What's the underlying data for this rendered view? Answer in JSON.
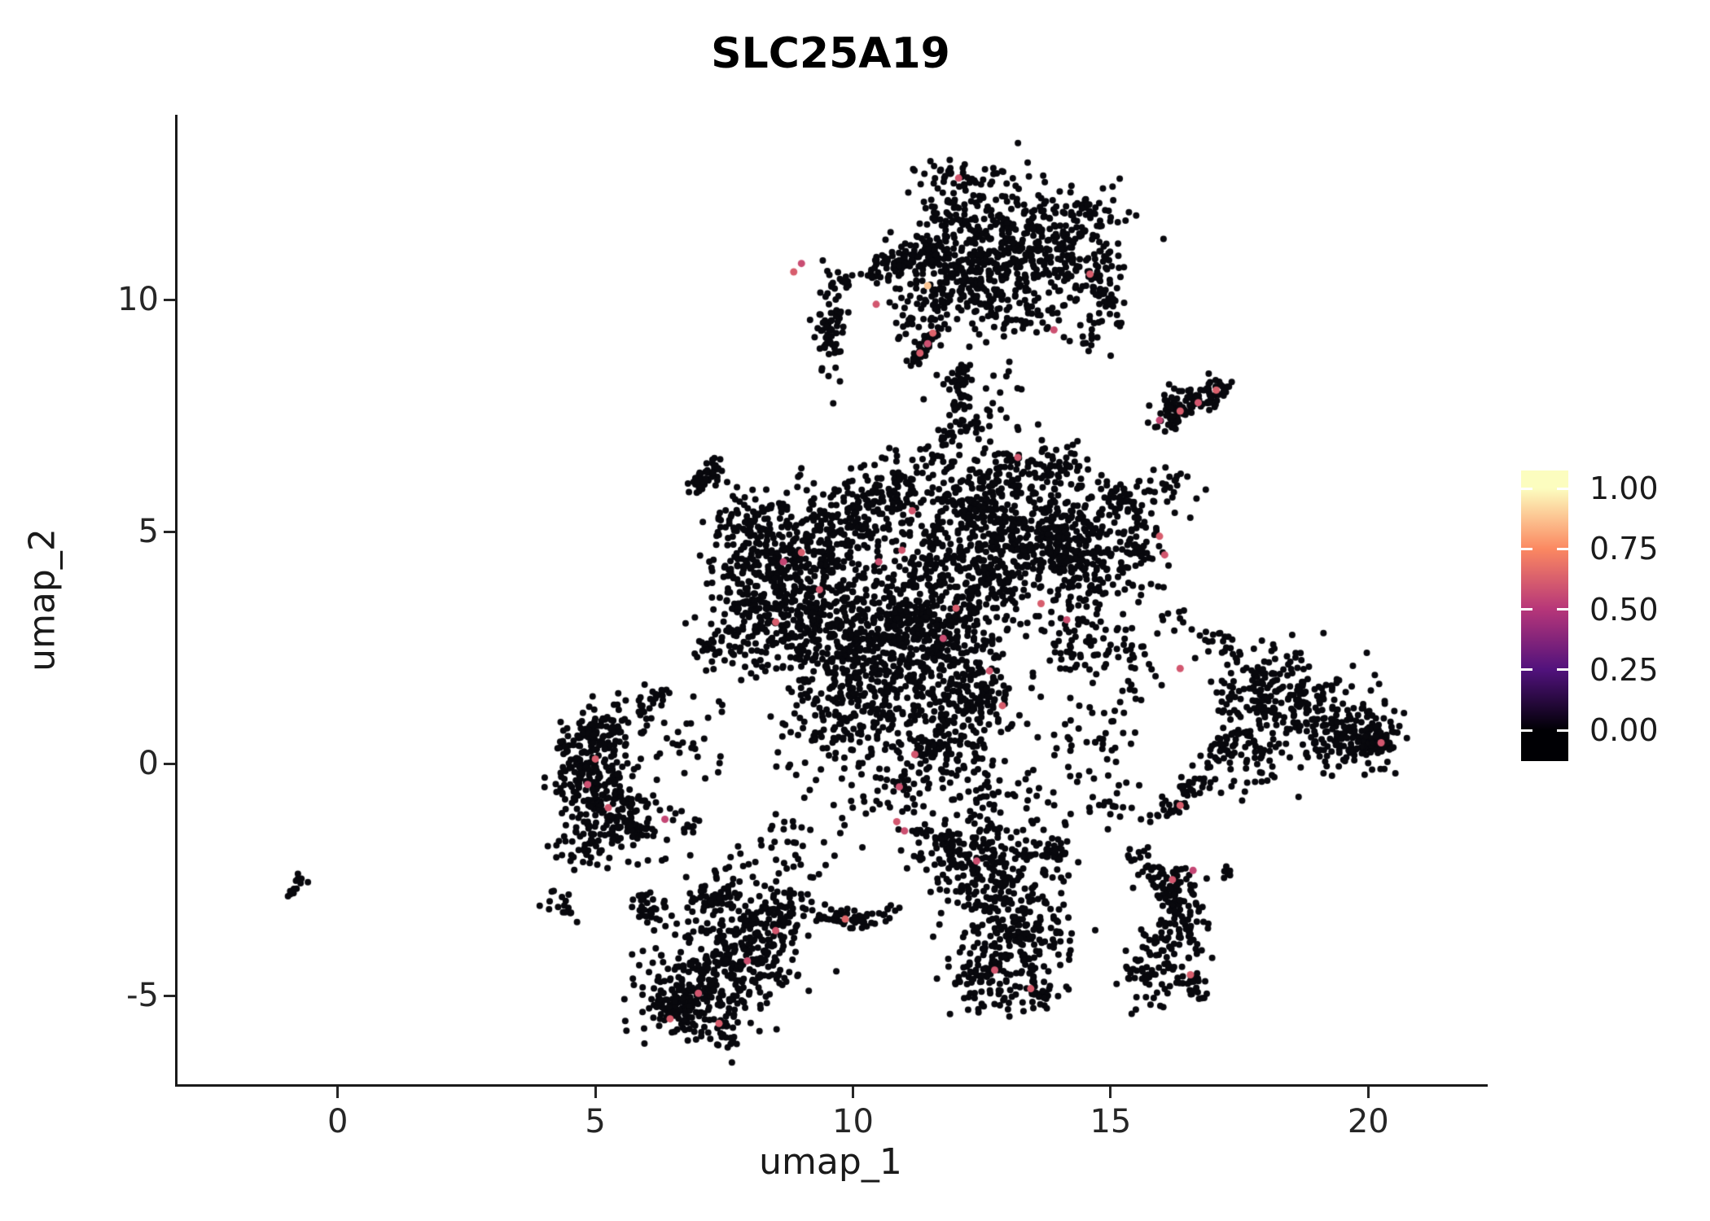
{
  "title": "SLC25A19",
  "axes": {
    "x": {
      "label": "umap_1",
      "min": -3.11,
      "max": 22.24,
      "ticks": [
        {
          "label": "0",
          "value": 0
        },
        {
          "label": "5",
          "value": 5
        },
        {
          "label": "10",
          "value": 10
        },
        {
          "label": "15",
          "value": 15
        },
        {
          "label": "20",
          "value": 20
        }
      ]
    },
    "y": {
      "label": "umap_2",
      "min": -6.91,
      "max": 13.95,
      "ticks": [
        {
          "label": "-5",
          "value": -5
        },
        {
          "label": "0",
          "value": 0
        },
        {
          "label": "5",
          "value": 5
        },
        {
          "label": "10",
          "value": 10
        }
      ]
    }
  },
  "legend": {
    "labels": [
      {
        "text": "1.00",
        "value": 1
      },
      {
        "text": "0.75",
        "value": 0.75
      },
      {
        "text": "0.50",
        "value": 0.5
      },
      {
        "text": "0.25",
        "value": 0.25
      },
      {
        "text": "0.00",
        "value": 0
      }
    ],
    "colormap": [
      {
        "v": 0,
        "color": "#000004"
      },
      {
        "v": 0.25,
        "color": "#51127c"
      },
      {
        "v": 0.5,
        "color": "#b63679"
      },
      {
        "v": 0.75,
        "color": "#fb8861"
      },
      {
        "v": 1,
        "color": "#fcfdbf"
      }
    ]
  },
  "chart_data": {
    "type": "scatter",
    "title": "SLC25A19",
    "xlabel": "umap_1",
    "ylabel": "umap_2",
    "xlim": [
      -3.11,
      22.24
    ],
    "ylim": [
      -6.91,
      13.95
    ],
    "grid": false,
    "panel_background": "#ffffff",
    "point_color_zero": "#08080d",
    "point_radius_px": 4.0,
    "seed": 42,
    "clusters": [
      {
        "t": "g",
        "cx": 12.35,
        "cy": 11.5,
        "sx": 0.75,
        "sy": 0.65,
        "n": 260
      },
      {
        "t": "g",
        "cx": 13.6,
        "cy": 10.9,
        "sx": 0.7,
        "sy": 0.55,
        "n": 220
      },
      {
        "t": "g",
        "cx": 12.0,
        "cy": 10.4,
        "sx": 0.55,
        "sy": 0.45,
        "n": 130
      },
      {
        "t": "g",
        "cx": 14.5,
        "cy": 11.7,
        "sx": 0.45,
        "sy": 0.45,
        "n": 70
      },
      {
        "t": "s",
        "x1": 10.35,
        "y1": 10.55,
        "x2": 11.6,
        "y2": 11.2,
        "j": 0.16,
        "n": 90
      },
      {
        "t": "g",
        "cx": 12.0,
        "cy": 12.6,
        "sx": 0.35,
        "sy": 0.25,
        "n": 25
      },
      {
        "t": "g",
        "cx": 14.9,
        "cy": 10.2,
        "sx": 0.2,
        "sy": 0.35,
        "n": 45
      },
      {
        "t": "g",
        "cx": 13.0,
        "cy": 9.8,
        "sx": 0.5,
        "sy": 0.3,
        "n": 60
      },
      {
        "t": "g",
        "cx": 11.3,
        "cy": 9.9,
        "sx": 0.4,
        "sy": 0.35,
        "n": 40
      },
      {
        "t": "g",
        "cx": 14.6,
        "cy": 9.3,
        "sx": 0.3,
        "sy": 0.25,
        "n": 20
      },
      {
        "t": "g",
        "cx": 9.55,
        "cy": 9.4,
        "sx": 0.16,
        "sy": 0.55,
        "n": 65
      },
      {
        "t": "g",
        "cx": 9.8,
        "cy": 10.35,
        "sx": 0.12,
        "sy": 0.15,
        "n": 12
      },
      {
        "t": "s",
        "x1": 11.15,
        "y1": 8.65,
        "x2": 11.65,
        "y2": 9.35,
        "j": 0.1,
        "n": 40
      },
      {
        "t": "s",
        "x1": 12.05,
        "y1": 7.55,
        "x2": 12.1,
        "y2": 8.55,
        "j": 0.1,
        "n": 45
      },
      {
        "t": "g",
        "cx": 12.35,
        "cy": 7.3,
        "sx": 0.18,
        "sy": 0.15,
        "n": 18
      },
      {
        "t": "g",
        "cx": 11.8,
        "cy": 7.0,
        "sx": 0.12,
        "sy": 0.1,
        "n": 10
      },
      {
        "t": "s",
        "x1": 15.95,
        "y1": 7.35,
        "x2": 17.15,
        "y2": 8.15,
        "j": 0.15,
        "n": 85
      },
      {
        "t": "g",
        "cx": 16.3,
        "cy": 7.7,
        "sx": 0.2,
        "sy": 0.2,
        "n": 30
      },
      {
        "t": "g",
        "cx": 12.5,
        "cy": 7.9,
        "sx": 0.6,
        "sy": 0.7,
        "n": 35
      },
      {
        "t": "g",
        "cx": 11.6,
        "cy": 6.7,
        "sx": 0.3,
        "sy": 0.25,
        "n": 18
      },
      {
        "t": "g",
        "cx": 8.6,
        "cy": 4.7,
        "sx": 0.55,
        "sy": 0.6,
        "n": 240
      },
      {
        "t": "g",
        "cx": 9.4,
        "cy": 3.5,
        "sx": 0.6,
        "sy": 0.6,
        "n": 240
      },
      {
        "t": "g",
        "cx": 8.3,
        "cy": 2.9,
        "sx": 0.45,
        "sy": 0.5,
        "n": 140
      },
      {
        "t": "g",
        "cx": 10.0,
        "cy": 5.2,
        "sx": 0.5,
        "sy": 0.45,
        "n": 140
      },
      {
        "t": "g",
        "cx": 10.7,
        "cy": 5.9,
        "sx": 0.45,
        "sy": 0.35,
        "n": 90
      },
      {
        "t": "s",
        "x1": 6.9,
        "y1": 5.9,
        "x2": 7.4,
        "y2": 6.5,
        "j": 0.12,
        "n": 45
      },
      {
        "t": "g",
        "cx": 7.8,
        "cy": 5.3,
        "sx": 0.25,
        "sy": 0.3,
        "n": 35
      },
      {
        "t": "g",
        "cx": 7.7,
        "cy": 4.0,
        "sx": 0.3,
        "sy": 0.5,
        "n": 60
      },
      {
        "t": "g",
        "cx": 7.3,
        "cy": 2.6,
        "sx": 0.3,
        "sy": 0.3,
        "n": 30
      },
      {
        "t": "g",
        "cx": 13.5,
        "cy": 5.1,
        "sx": 0.7,
        "sy": 0.65,
        "n": 300
      },
      {
        "t": "g",
        "cx": 14.5,
        "cy": 4.3,
        "sx": 0.5,
        "sy": 0.55,
        "n": 200
      },
      {
        "t": "g",
        "cx": 12.7,
        "cy": 4.1,
        "sx": 0.5,
        "sy": 0.5,
        "n": 160
      },
      {
        "t": "g",
        "cx": 12.9,
        "cy": 6.2,
        "sx": 0.5,
        "sy": 0.3,
        "n": 80
      },
      {
        "t": "g",
        "cx": 15.2,
        "cy": 5.6,
        "sx": 0.3,
        "sy": 0.35,
        "n": 60
      },
      {
        "t": "g",
        "cx": 14.0,
        "cy": 6.4,
        "sx": 0.3,
        "sy": 0.25,
        "n": 40
      },
      {
        "t": "g",
        "cx": 15.6,
        "cy": 4.6,
        "sx": 0.25,
        "sy": 0.4,
        "n": 40
      },
      {
        "t": "g",
        "cx": 11.3,
        "cy": 2.3,
        "sx": 0.75,
        "sy": 0.6,
        "n": 280
      },
      {
        "t": "g",
        "cx": 12.3,
        "cy": 1.4,
        "sx": 0.5,
        "sy": 0.5,
        "n": 150
      },
      {
        "t": "g",
        "cx": 10.4,
        "cy": 1.1,
        "sx": 0.5,
        "sy": 0.55,
        "n": 150
      },
      {
        "t": "g",
        "cx": 11.7,
        "cy": 0.3,
        "sx": 0.45,
        "sy": 0.35,
        "n": 90
      },
      {
        "t": "g",
        "cx": 10.9,
        "cy": -0.6,
        "sx": 0.5,
        "sy": 0.45,
        "n": 50
      },
      {
        "t": "g",
        "cx": 11.9,
        "cy": 3.2,
        "sx": 0.6,
        "sy": 0.4,
        "n": 120
      },
      {
        "t": "g",
        "cx": 10.1,
        "cy": 2.4,
        "sx": 0.4,
        "sy": 0.4,
        "n": 80
      },
      {
        "t": "g",
        "cx": 9.4,
        "cy": 1.6,
        "sx": 0.45,
        "sy": 0.5,
        "n": 70
      },
      {
        "t": "g",
        "cx": 9.3,
        "cy": 0.3,
        "sx": 0.5,
        "sy": 0.5,
        "n": 35
      },
      {
        "t": "g",
        "cx": 12.2,
        "cy": 5.6,
        "sx": 0.4,
        "sy": 0.4,
        "n": 100
      },
      {
        "t": "g",
        "cx": 11.5,
        "cy": 4.3,
        "sx": 0.45,
        "sy": 0.5,
        "n": 110
      },
      {
        "t": "g",
        "cx": 10.9,
        "cy": 3.4,
        "sx": 0.4,
        "sy": 0.4,
        "n": 90
      },
      {
        "t": "g",
        "cx": 18.3,
        "cy": 1.6,
        "sx": 0.5,
        "sy": 0.45,
        "n": 130
      },
      {
        "t": "g",
        "cx": 19.3,
        "cy": 0.9,
        "sx": 0.55,
        "sy": 0.5,
        "n": 170
      },
      {
        "t": "g",
        "cx": 20.0,
        "cy": 0.55,
        "sx": 0.3,
        "sy": 0.3,
        "n": 70
      },
      {
        "t": "g",
        "cx": 20.25,
        "cy": 0.5,
        "sx": 0.15,
        "sy": 0.2,
        "n": 30
      },
      {
        "t": "s",
        "x1": 16.0,
        "y1": -1.15,
        "x2": 17.5,
        "y2": 0.6,
        "j": 0.15,
        "n": 80
      },
      {
        "t": "g",
        "cx": 17.8,
        "cy": 0.2,
        "sx": 0.3,
        "sy": 0.35,
        "n": 50
      },
      {
        "t": "g",
        "cx": 17.1,
        "cy": 2.5,
        "sx": 0.25,
        "sy": 0.2,
        "n": 22
      },
      {
        "t": "g",
        "cx": 16.2,
        "cy": 3.1,
        "sx": 0.15,
        "sy": 0.15,
        "n": 10
      },
      {
        "t": "g",
        "cx": 17.6,
        "cy": 1.3,
        "sx": 0.35,
        "sy": 0.4,
        "n": 40
      },
      {
        "t": "g",
        "cx": 4.9,
        "cy": -0.3,
        "sx": 0.38,
        "sy": 0.55,
        "n": 170
      },
      {
        "t": "g",
        "cx": 5.45,
        "cy": -1.15,
        "sx": 0.45,
        "sy": 0.4,
        "n": 130
      },
      {
        "t": "g",
        "cx": 5.0,
        "cy": 0.55,
        "sx": 0.3,
        "sy": 0.3,
        "n": 80
      },
      {
        "t": "g",
        "cx": 5.8,
        "cy": 1.0,
        "sx": 0.35,
        "sy": 0.3,
        "n": 35
      },
      {
        "t": "g",
        "cx": 4.75,
        "cy": -1.85,
        "sx": 0.3,
        "sy": 0.22,
        "n": 35
      },
      {
        "t": "g",
        "cx": 6.2,
        "cy": 1.4,
        "sx": 0.15,
        "sy": 0.15,
        "n": 12
      },
      {
        "t": "g",
        "cx": 7.2,
        "cy": -4.6,
        "sx": 0.6,
        "sy": 0.55,
        "n": 240
      },
      {
        "t": "g",
        "cx": 8.0,
        "cy": -3.9,
        "sx": 0.5,
        "sy": 0.5,
        "n": 160
      },
      {
        "t": "g",
        "cx": 6.6,
        "cy": -5.3,
        "sx": 0.4,
        "sy": 0.3,
        "n": 90
      },
      {
        "t": "g",
        "cx": 8.6,
        "cy": -3.2,
        "sx": 0.3,
        "sy": 0.3,
        "n": 60
      },
      {
        "t": "s",
        "x1": 6.9,
        "y1": -3.0,
        "x2": 7.7,
        "y2": -2.8,
        "j": 0.12,
        "n": 40
      },
      {
        "t": "g",
        "cx": 6.15,
        "cy": -3.3,
        "sx": 0.2,
        "sy": 0.2,
        "n": 25
      },
      {
        "t": "g",
        "cx": 5.95,
        "cy": -2.9,
        "sx": 0.12,
        "sy": 0.1,
        "n": 10
      },
      {
        "t": "g",
        "cx": 7.3,
        "cy": -5.85,
        "sx": 0.3,
        "sy": 0.15,
        "n": 25
      },
      {
        "t": "g",
        "cx": 7.6,
        "cy": -2.4,
        "sx": 0.3,
        "sy": 0.25,
        "n": 18
      },
      {
        "t": "g",
        "cx": 4.35,
        "cy": -3.05,
        "sx": 0.18,
        "sy": 0.12,
        "n": 16
      },
      {
        "t": "s",
        "x1": 9.35,
        "y1": -3.3,
        "x2": 10.45,
        "y2": -3.4,
        "j": 0.1,
        "n": 55
      },
      {
        "t": "g",
        "cx": 10.75,
        "cy": -3.2,
        "sx": 0.12,
        "sy": 0.12,
        "n": 10
      },
      {
        "t": "g",
        "cx": 12.6,
        "cy": -2.4,
        "sx": 0.55,
        "sy": 0.5,
        "n": 170
      },
      {
        "t": "g",
        "cx": 13.3,
        "cy": -3.6,
        "sx": 0.5,
        "sy": 0.55,
        "n": 170
      },
      {
        "t": "g",
        "cx": 12.5,
        "cy": -4.6,
        "sx": 0.38,
        "sy": 0.4,
        "n": 90
      },
      {
        "t": "g",
        "cx": 11.8,
        "cy": -1.8,
        "sx": 0.35,
        "sy": 0.3,
        "n": 70
      },
      {
        "t": "g",
        "cx": 13.85,
        "cy": -1.8,
        "sx": 0.28,
        "sy": 0.3,
        "n": 45
      },
      {
        "t": "g",
        "cx": 12.2,
        "cy": -0.9,
        "sx": 0.4,
        "sy": 0.4,
        "n": 25
      },
      {
        "t": "g",
        "cx": 13.6,
        "cy": -4.9,
        "sx": 0.25,
        "sy": 0.2,
        "n": 30
      },
      {
        "t": "g",
        "cx": 16.1,
        "cy": -2.55,
        "sx": 0.28,
        "sy": 0.3,
        "n": 65
      },
      {
        "t": "g",
        "cx": 16.4,
        "cy": -3.4,
        "sx": 0.22,
        "sy": 0.4,
        "n": 70
      },
      {
        "t": "g",
        "cx": 15.9,
        "cy": -4.35,
        "sx": 0.3,
        "sy": 0.4,
        "n": 75
      },
      {
        "t": "g",
        "cx": 16.65,
        "cy": -4.8,
        "sx": 0.2,
        "sy": 0.15,
        "n": 25
      },
      {
        "t": "g",
        "cx": 15.5,
        "cy": -2.0,
        "sx": 0.12,
        "sy": 0.15,
        "n": 12
      },
      {
        "t": "g",
        "cx": 17.3,
        "cy": -2.35,
        "sx": 0.1,
        "sy": 0.1,
        "n": 8
      },
      {
        "t": "s",
        "x1": -0.95,
        "y1": -2.8,
        "x2": -0.65,
        "y2": -2.45,
        "j": 0.06,
        "n": 16
      },
      {
        "t": "g",
        "cx": 6.9,
        "cy": 0.3,
        "sx": 0.4,
        "sy": 0.5,
        "n": 25
      },
      {
        "t": "g",
        "cx": 6.6,
        "cy": -1.6,
        "sx": 0.3,
        "sy": 0.3,
        "n": 15
      },
      {
        "t": "g",
        "cx": 8.9,
        "cy": -1.6,
        "sx": 0.5,
        "sy": 0.4,
        "n": 30
      },
      {
        "t": "g",
        "cx": 8.9,
        "cy": -2.7,
        "sx": 0.25,
        "sy": 0.25,
        "n": 15
      },
      {
        "t": "g",
        "cx": 14.6,
        "cy": 0.3,
        "sx": 0.4,
        "sy": 0.5,
        "n": 40
      },
      {
        "t": "g",
        "cx": 15.1,
        "cy": -0.9,
        "sx": 0.3,
        "sy": 0.3,
        "n": 20
      },
      {
        "t": "g",
        "cx": 14.4,
        "cy": 2.6,
        "sx": 0.4,
        "sy": 0.5,
        "n": 60
      },
      {
        "t": "g",
        "cx": 15.4,
        "cy": 2.0,
        "sx": 0.3,
        "sy": 0.4,
        "n": 30
      },
      {
        "t": "g",
        "cx": 16.1,
        "cy": 5.9,
        "sx": 0.25,
        "sy": 0.3,
        "n": 25
      },
      {
        "t": "g",
        "cx": 12.6,
        "cy": -0.6,
        "sx": 0.3,
        "sy": 0.5,
        "n": 30
      },
      {
        "t": "g",
        "cx": 13.5,
        "cy": -0.9,
        "sx": 0.4,
        "sy": 0.4,
        "n": 25
      }
    ],
    "highlights": [
      {
        "x": 8.85,
        "y": 10.6,
        "v": 0.62
      },
      {
        "x": 9.0,
        "y": 10.78,
        "v": 0.57
      },
      {
        "x": 10.45,
        "y": 9.9,
        "v": 0.6
      },
      {
        "x": 11.3,
        "y": 8.85,
        "v": 0.62
      },
      {
        "x": 11.45,
        "y": 9.05,
        "v": 0.58
      },
      {
        "x": 11.55,
        "y": 9.28,
        "v": 0.64
      },
      {
        "x": 12.05,
        "y": 12.62,
        "v": 0.6
      },
      {
        "x": 11.45,
        "y": 10.3,
        "v": 0.88
      },
      {
        "x": 14.6,
        "y": 10.55,
        "v": 0.62
      },
      {
        "x": 13.9,
        "y": 9.35,
        "v": 0.58
      },
      {
        "x": 15.95,
        "y": 7.4,
        "v": 0.55
      },
      {
        "x": 16.35,
        "y": 7.6,
        "v": 0.62
      },
      {
        "x": 16.7,
        "y": 7.78,
        "v": 0.6
      },
      {
        "x": 17.05,
        "y": 8.05,
        "v": 0.63
      },
      {
        "x": 13.2,
        "y": 6.6,
        "v": 0.6
      },
      {
        "x": 11.15,
        "y": 5.45,
        "v": 0.6
      },
      {
        "x": 9.0,
        "y": 4.55,
        "v": 0.62
      },
      {
        "x": 8.65,
        "y": 4.35,
        "v": 0.55
      },
      {
        "x": 9.35,
        "y": 3.75,
        "v": 0.6
      },
      {
        "x": 8.5,
        "y": 3.05,
        "v": 0.62
      },
      {
        "x": 10.5,
        "y": 4.35,
        "v": 0.58
      },
      {
        "x": 10.95,
        "y": 4.6,
        "v": 0.6
      },
      {
        "x": 12.0,
        "y": 3.35,
        "v": 0.62
      },
      {
        "x": 11.75,
        "y": 2.7,
        "v": 0.57
      },
      {
        "x": 13.65,
        "y": 3.45,
        "v": 0.62
      },
      {
        "x": 14.15,
        "y": 3.1,
        "v": 0.58
      },
      {
        "x": 15.95,
        "y": 4.9,
        "v": 0.62
      },
      {
        "x": 16.05,
        "y": 4.5,
        "v": 0.6
      },
      {
        "x": 12.65,
        "y": 2.0,
        "v": 0.6
      },
      {
        "x": 12.9,
        "y": 1.25,
        "v": 0.62
      },
      {
        "x": 11.2,
        "y": 0.2,
        "v": 0.6
      },
      {
        "x": 10.9,
        "y": -0.5,
        "v": 0.58
      },
      {
        "x": 16.35,
        "y": 2.05,
        "v": 0.6
      },
      {
        "x": 16.35,
        "y": -0.9,
        "v": 0.62
      },
      {
        "x": 20.25,
        "y": 0.45,
        "v": 0.6
      },
      {
        "x": 5.0,
        "y": 0.1,
        "v": 0.62
      },
      {
        "x": 4.85,
        "y": -0.45,
        "v": 0.58
      },
      {
        "x": 5.25,
        "y": -0.95,
        "v": 0.6
      },
      {
        "x": 6.35,
        "y": -1.2,
        "v": 0.55
      },
      {
        "x": 6.45,
        "y": -5.5,
        "v": 0.62
      },
      {
        "x": 7.0,
        "y": -4.95,
        "v": 0.6
      },
      {
        "x": 7.4,
        "y": -5.6,
        "v": 0.62
      },
      {
        "x": 7.95,
        "y": -4.25,
        "v": 0.58
      },
      {
        "x": 8.5,
        "y": -3.6,
        "v": 0.6
      },
      {
        "x": 9.85,
        "y": -3.35,
        "v": 0.65
      },
      {
        "x": 10.85,
        "y": -1.25,
        "v": 0.6
      },
      {
        "x": 11.0,
        "y": -1.45,
        "v": 0.58
      },
      {
        "x": 12.4,
        "y": -2.1,
        "v": 0.58
      },
      {
        "x": 12.75,
        "y": -4.45,
        "v": 0.6
      },
      {
        "x": 13.45,
        "y": -4.85,
        "v": 0.62
      },
      {
        "x": 16.2,
        "y": -2.5,
        "v": 0.6
      },
      {
        "x": 16.6,
        "y": -2.3,
        "v": 0.55
      },
      {
        "x": 16.55,
        "y": -4.55,
        "v": 0.62
      }
    ]
  }
}
